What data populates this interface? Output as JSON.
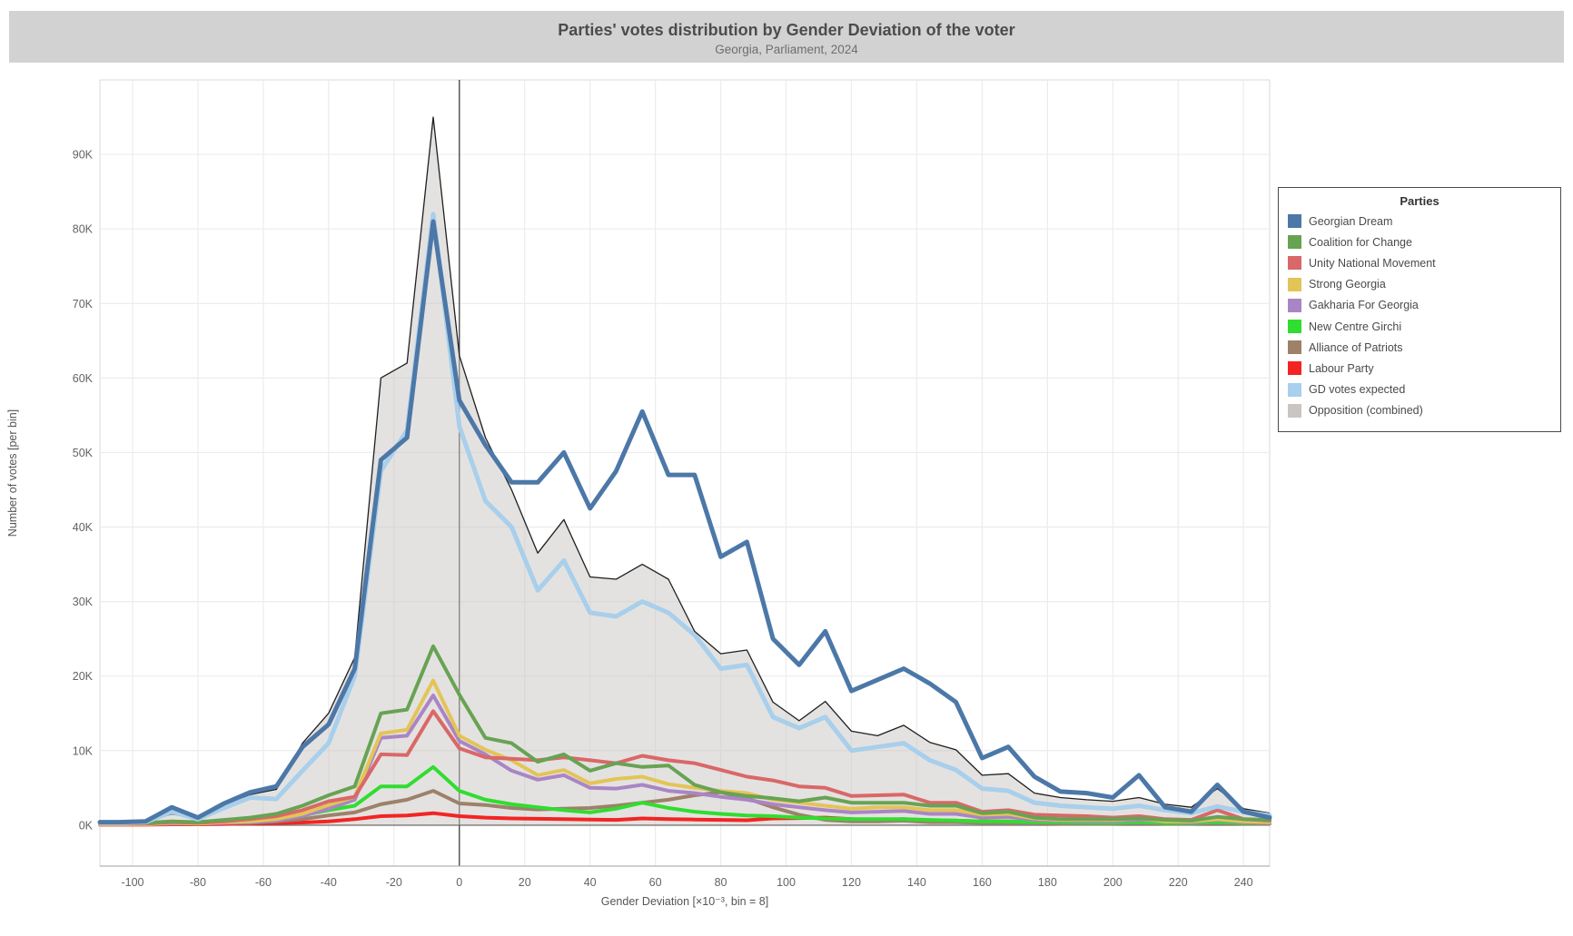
{
  "title_bar": {
    "title": "Parties' votes distribution by Gender Deviation of the voter",
    "subtitle": "Georgia, Parliament, 2024"
  },
  "axes": {
    "x_title": "Gender Deviation [×10⁻³, bin = 8]",
    "y_title": "Number of votes [per bin]",
    "x_tick_values": [
      -100,
      -80,
      -60,
      -40,
      -20,
      0,
      20,
      40,
      60,
      80,
      100,
      120,
      140,
      160,
      180,
      200,
      220,
      240
    ],
    "y_tick_values": [
      0,
      10,
      20,
      30,
      40,
      50,
      60,
      70,
      80,
      90
    ],
    "y_tick_labels": [
      "0K",
      "10K",
      "20K",
      "30K",
      "40K",
      "50K",
      "60K",
      "70K",
      "80K",
      "90K"
    ]
  },
  "legend": {
    "title": "Parties"
  },
  "colors": {
    "title_bar_bg": "#d2d2d2",
    "plot_border": "#d9d9d9",
    "plot_bottom_border": "#b0b0b0",
    "gridline": "#ececec",
    "zeroline": "#4a4a4a",
    "tick_label": "#636363",
    "axis_title": "#555555",
    "area_fill": "rgba(201,197,193,0.5)",
    "area_outline": "#1f1f1f"
  },
  "chart_data": {
    "type": "line",
    "title": "Parties' votes distribution by Gender Deviation of the voter",
    "subtitle": "Georgia, Parliament, 2024",
    "xlabel": "Gender Deviation [×10⁻³, bin = 8]",
    "ylabel": "Number of votes [per bin]",
    "x_range": [
      -110,
      248
    ],
    "y_range_k": [
      -5.5,
      100
    ],
    "grid": true,
    "legend_position": "right",
    "units": "thousands of votes per bin",
    "x": [
      -110,
      -104,
      -96,
      -88,
      -80,
      -72,
      -64,
      -56,
      -48,
      -40,
      -32,
      -24,
      -16,
      -8,
      0,
      8,
      16,
      24,
      32,
      40,
      48,
      56,
      64,
      72,
      80,
      88,
      96,
      104,
      112,
      120,
      128,
      136,
      144,
      152,
      160,
      168,
      176,
      184,
      192,
      200,
      208,
      216,
      224,
      232,
      240,
      248
    ],
    "draw_order": [
      9,
      7,
      6,
      5,
      4,
      3,
      2,
      1,
      8,
      0
    ],
    "series": [
      {
        "name": "Georgian Dream",
        "color": "#4c78a8",
        "width": 5,
        "kind": "line",
        "values": [
          0.4,
          0.4,
          0.5,
          2.4,
          1.0,
          2.9,
          4.4,
          5.2,
          10.5,
          13.5,
          21,
          49,
          52,
          81,
          57,
          51,
          46,
          46,
          50,
          42.5,
          47.5,
          55.5,
          47,
          47,
          36,
          38,
          25,
          21.5,
          26,
          18,
          19.5,
          21,
          19,
          16.5,
          9,
          10.5,
          6.5,
          4.5,
          4.3,
          3.7,
          6.7,
          2.4,
          1.8,
          5.4,
          1.8,
          1.0
        ]
      },
      {
        "name": "Coalition for Change",
        "color": "#67a353",
        "width": 4,
        "kind": "line",
        "values": [
          0.3,
          0.3,
          0.3,
          0.5,
          0.4,
          0.7,
          1.0,
          1.5,
          2.6,
          4.0,
          5.2,
          15,
          15.5,
          24,
          17.5,
          11.7,
          11,
          8.5,
          9.5,
          7.3,
          8.3,
          7.8,
          8.0,
          5.4,
          4.4,
          3.9,
          3.6,
          3.2,
          3.7,
          3.0,
          3.0,
          3.0,
          2.6,
          2.6,
          1.6,
          1.8,
          1.0,
          0.8,
          0.8,
          0.8,
          0.9,
          0.7,
          0.6,
          1.1,
          0.8,
          0.7
        ]
      },
      {
        "name": "Unity National Movement",
        "color": "#d96868",
        "width": 4,
        "kind": "line",
        "values": [
          0.2,
          0.2,
          0.2,
          0.4,
          0.3,
          0.5,
          0.8,
          1.2,
          2.0,
          3.2,
          3.8,
          9.5,
          9.4,
          15.3,
          10.3,
          9.1,
          8.9,
          8.7,
          9.1,
          8.7,
          8.3,
          9.3,
          8.7,
          8.3,
          7.4,
          6.5,
          6.0,
          5.2,
          5.0,
          3.9,
          4.0,
          4.1,
          3.0,
          3.0,
          1.8,
          2.0,
          1.4,
          1.3,
          1.2,
          1.0,
          1.2,
          0.8,
          0.7,
          2.0,
          0.8,
          0.6
        ]
      },
      {
        "name": "Strong Georgia",
        "color": "#e3c457",
        "width": 4,
        "kind": "line",
        "values": [
          0.1,
          0.1,
          0.1,
          0.3,
          0.2,
          0.4,
          0.5,
          0.8,
          1.5,
          2.7,
          3.8,
          12.3,
          12.8,
          19.4,
          12,
          10.1,
          8.7,
          6.7,
          7.4,
          5.6,
          6.2,
          6.5,
          5.5,
          5.0,
          4.6,
          4.3,
          3.4,
          3.0,
          2.6,
          2.2,
          2.4,
          2.4,
          2.0,
          2.0,
          1.4,
          1.5,
          0.9,
          0.7,
          0.7,
          0.7,
          0.9,
          0.5,
          0.5,
          0.8,
          0.5,
          0.4
        ]
      },
      {
        "name": "Gakharia For Georgia",
        "color": "#aa85c5",
        "width": 4,
        "kind": "line",
        "values": [
          0.1,
          0.1,
          0.1,
          0.2,
          0.2,
          0.3,
          0.4,
          0.6,
          1.2,
          2.2,
          3.4,
          11.7,
          12.0,
          17.4,
          11.3,
          9.5,
          7.3,
          6.1,
          6.7,
          5.0,
          4.9,
          5.4,
          4.6,
          4.3,
          3.8,
          3.4,
          2.8,
          2.4,
          2.0,
          1.7,
          1.8,
          1.9,
          1.5,
          1.5,
          1.0,
          1.1,
          0.7,
          0.6,
          0.5,
          0.5,
          0.7,
          0.5,
          0.4,
          0.7,
          0.4,
          0.3
        ]
      },
      {
        "name": "New Centre Girchi",
        "color": "#30dd30",
        "width": 4,
        "kind": "line",
        "values": [
          0.1,
          0.1,
          0.1,
          0.3,
          0.2,
          0.4,
          0.5,
          0.8,
          1.3,
          2.0,
          2.6,
          5.2,
          5.2,
          7.8,
          4.6,
          3.4,
          2.8,
          2.4,
          2.0,
          1.7,
          2.2,
          3.0,
          2.3,
          1.8,
          1.5,
          1.3,
          1.2,
          1.0,
          0.9,
          0.8,
          0.8,
          0.8,
          0.7,
          0.6,
          0.5,
          0.5,
          0.4,
          0.4,
          0.3,
          0.3,
          0.4,
          0.3,
          0.3,
          0.4,
          0.3,
          0.3
        ]
      },
      {
        "name": "Alliance of Patriots",
        "color": "#9d8169",
        "width": 4,
        "kind": "line",
        "values": [
          0.1,
          0.1,
          0.1,
          0.4,
          0.2,
          0.3,
          0.3,
          0.5,
          0.8,
          1.3,
          1.7,
          2.8,
          3.4,
          4.6,
          2.9,
          2.7,
          2.3,
          2.1,
          2.2,
          2.3,
          2.6,
          3.0,
          3.4,
          4.0,
          4.4,
          3.6,
          2.4,
          1.4,
          0.7,
          0.5,
          0.5,
          0.6,
          0.4,
          0.4,
          0.3,
          0.3,
          0.3,
          0.2,
          0.2,
          0.2,
          0.3,
          0.2,
          0.2,
          0.3,
          0.2,
          0.2
        ]
      },
      {
        "name": "Labour Party",
        "color": "#f32424",
        "width": 4,
        "kind": "line",
        "values": [
          0.05,
          0.05,
          0.05,
          0.1,
          0.1,
          0.15,
          0.2,
          0.25,
          0.35,
          0.5,
          0.8,
          1.2,
          1.3,
          1.6,
          1.2,
          1.0,
          0.9,
          0.85,
          0.8,
          0.75,
          0.7,
          0.9,
          0.8,
          0.75,
          0.7,
          0.65,
          0.9,
          0.95,
          1.0,
          0.8,
          0.7,
          0.8,
          0.6,
          0.6,
          0.5,
          0.5,
          0.4,
          0.4,
          0.35,
          0.3,
          0.4,
          0.3,
          0.25,
          0.5,
          0.3,
          0.25
        ]
      },
      {
        "name": "GD votes expected",
        "color": "#a8cfeb",
        "width": 5,
        "kind": "line",
        "values": [
          0.3,
          0.3,
          0.4,
          1.8,
          0.8,
          2.3,
          3.7,
          3.5,
          7.3,
          11,
          20,
          47.5,
          53,
          82,
          53.5,
          43.5,
          40,
          31.5,
          35.5,
          28.5,
          28,
          30,
          28.5,
          25.5,
          21,
          21.5,
          14.5,
          13,
          14.5,
          10,
          10.5,
          11,
          8.7,
          7.4,
          4.9,
          4.6,
          3.0,
          2.6,
          2.4,
          2.2,
          2.6,
          2.0,
          1.6,
          2.5,
          1.8,
          1.3
        ]
      },
      {
        "name": "Opposition (combined)",
        "color": "#c9c5c1",
        "width": 1.3,
        "kind": "area",
        "values": [
          0.3,
          0.3,
          0.4,
          1.5,
          0.8,
          2.2,
          4.1,
          4.8,
          11,
          15,
          22.5,
          60,
          62,
          95,
          63,
          52,
          45,
          36.5,
          41,
          33.3,
          33,
          35,
          33,
          26,
          23,
          23.5,
          16.5,
          14,
          16.6,
          12.6,
          12,
          13.4,
          11.1,
          10.1,
          6.7,
          6.9,
          4.3,
          3.7,
          3.4,
          3.2,
          3.7,
          2.8,
          2.4,
          4.9,
          2.2,
          1.6
        ]
      }
    ]
  }
}
